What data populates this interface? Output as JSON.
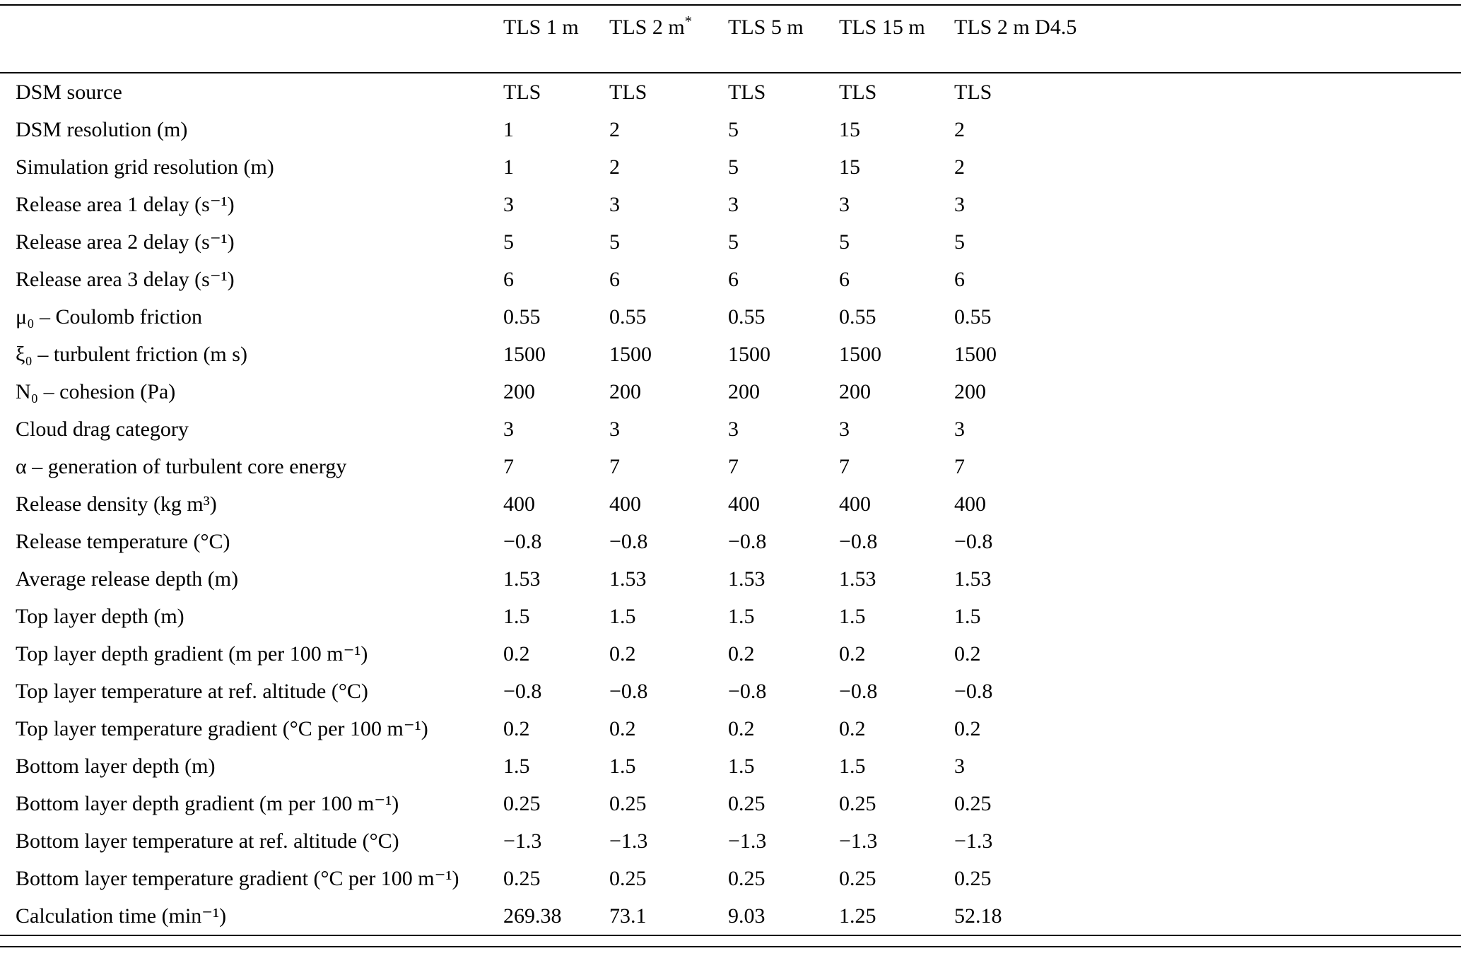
{
  "table": {
    "columns": [
      "",
      "TLS 1 m",
      "TLS 2 m*",
      "TLS 5 m",
      "TLS 15 m",
      "TLS 2 m D4.5"
    ],
    "rows": [
      {
        "label": "DSM source",
        "values": [
          "TLS",
          "TLS",
          "TLS",
          "TLS",
          "TLS"
        ]
      },
      {
        "label": "DSM resolution (m)",
        "values": [
          "1",
          "2",
          "5",
          "15",
          "2"
        ]
      },
      {
        "label": "Simulation grid resolution (m)",
        "values": [
          "1",
          "2",
          "5",
          "15",
          "2"
        ]
      },
      {
        "label": "Release area 1 delay (s⁻¹)",
        "values": [
          "3",
          "3",
          "3",
          "3",
          "3"
        ]
      },
      {
        "label": "Release area 2 delay (s⁻¹)",
        "values": [
          "5",
          "5",
          "5",
          "5",
          "5"
        ]
      },
      {
        "label": "Release area 3 delay (s⁻¹)",
        "values": [
          "6",
          "6",
          "6",
          "6",
          "6"
        ]
      },
      {
        "label": "μ₀ – Coulomb friction",
        "values": [
          "0.55",
          "0.55",
          "0.55",
          "0.55",
          "0.55"
        ]
      },
      {
        "label": "ξ₀ – turbulent friction (m s)",
        "values": [
          "1500",
          "1500",
          "1500",
          "1500",
          "1500"
        ]
      },
      {
        "label": "N₀ – cohesion (Pa)",
        "values": [
          "200",
          "200",
          "200",
          "200",
          "200"
        ]
      },
      {
        "label": "Cloud drag category",
        "values": [
          "3",
          "3",
          "3",
          "3",
          "3"
        ]
      },
      {
        "label": "α – generation of turbulent core energy",
        "values": [
          "7",
          "7",
          "7",
          "7",
          "7"
        ]
      },
      {
        "label": "Release density (kg m³)",
        "values": [
          "400",
          "400",
          "400",
          "400",
          "400"
        ]
      },
      {
        "label": "Release temperature (°C)",
        "values": [
          "−0.8",
          "−0.8",
          "−0.8",
          "−0.8",
          "−0.8"
        ]
      },
      {
        "label": "Average release depth (m)",
        "values": [
          "1.53",
          "1.53",
          "1.53",
          "1.53",
          "1.53"
        ]
      },
      {
        "label": "Top layer depth (m)",
        "values": [
          "1.5",
          "1.5",
          "1.5",
          "1.5",
          "1.5"
        ]
      },
      {
        "label": "Top layer depth gradient (m per 100 m⁻¹)",
        "values": [
          "0.2",
          "0.2",
          "0.2",
          "0.2",
          "0.2"
        ]
      },
      {
        "label": "Top layer temperature at ref. altitude (°C)",
        "values": [
          "−0.8",
          "−0.8",
          "−0.8",
          "−0.8",
          "−0.8"
        ]
      },
      {
        "label": "Top layer temperature gradient (°C per 100 m⁻¹)",
        "values": [
          "0.2",
          "0.2",
          "0.2",
          "0.2",
          "0.2"
        ]
      },
      {
        "label": "Bottom layer depth (m)",
        "values": [
          "1.5",
          "1.5",
          "1.5",
          "1.5",
          "3"
        ]
      },
      {
        "label": "Bottom layer depth gradient (m per 100 m⁻¹)",
        "values": [
          "0.25",
          "0.25",
          "0.25",
          "0.25",
          "0.25"
        ]
      },
      {
        "label": "Bottom layer temperature at ref. altitude (°C)",
        "values": [
          "−1.3",
          "−1.3",
          "−1.3",
          "−1.3",
          "−1.3"
        ]
      },
      {
        "label": "Bottom layer temperature gradient (°C per 100 m⁻¹)",
        "values": [
          "0.25",
          "0.25",
          "0.25",
          "0.25",
          "0.25"
        ]
      },
      {
        "label": "Calculation time (min⁻¹)",
        "values": [
          "269.38",
          "73.1",
          "9.03",
          "1.25",
          "52.18"
        ]
      }
    ]
  }
}
